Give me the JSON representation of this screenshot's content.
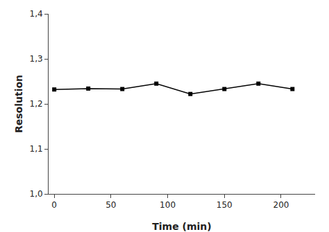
{
  "chart_data": {
    "type": "line",
    "x": [
      0,
      30,
      60,
      90,
      120,
      150,
      180,
      210
    ],
    "values": [
      1.232,
      1.234,
      1.233,
      1.245,
      1.222,
      1.233,
      1.245,
      1.233
    ],
    "x_label": "Time (min)",
    "y_label": "Resolution",
    "xlim": [
      -5,
      230
    ],
    "ylim": [
      1.0,
      1.4
    ],
    "xticks": [
      0,
      50,
      100,
      150,
      200
    ],
    "yticks": [
      {
        "value": 1.0,
        "label": "1,0"
      },
      {
        "value": 1.1,
        "label": "1,1"
      },
      {
        "value": 1.2,
        "label": "1,2"
      },
      {
        "value": 1.3,
        "label": "1,3"
      },
      {
        "value": 1.4,
        "label": "1,4"
      }
    ],
    "color": "#000000",
    "marker": "square",
    "grid": false
  }
}
